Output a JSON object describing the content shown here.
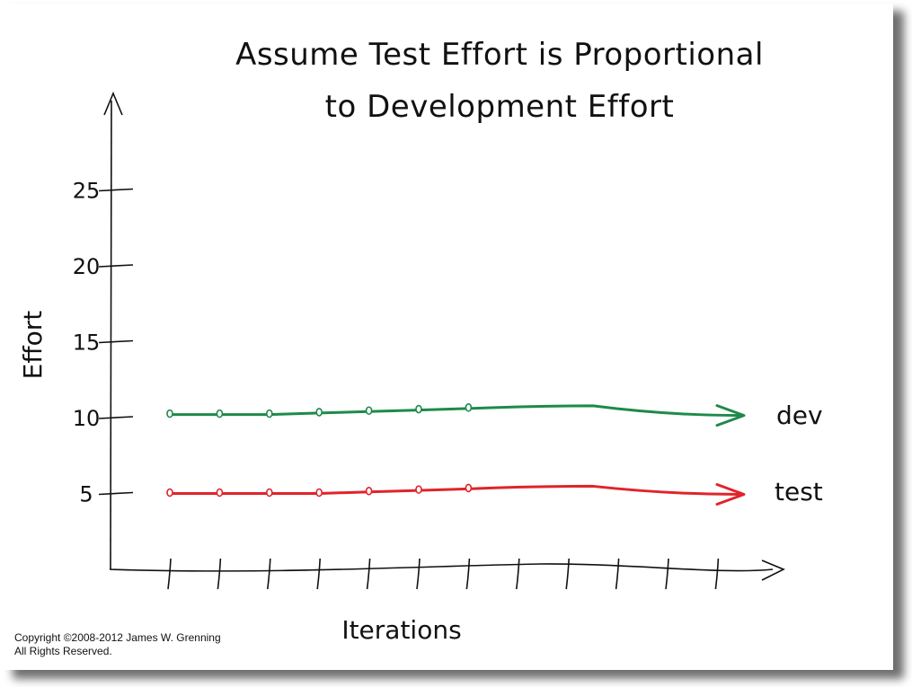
{
  "chart_data": {
    "type": "line",
    "title_lines": [
      "Assume Test Effort is Proportional",
      "to Development Effort"
    ],
    "xlabel": "Iterations",
    "ylabel": "Effort",
    "yticks": [
      "5",
      "10",
      "15",
      "20",
      "25"
    ],
    "ytick_values": [
      5,
      10,
      15,
      20,
      25
    ],
    "ylim": [
      0,
      30
    ],
    "x": [
      1,
      2,
      3,
      4,
      5,
      6,
      7
    ],
    "x_tick_count": 12,
    "grid": false,
    "series": [
      {
        "name": "dev",
        "values": [
          10.2,
          10.2,
          10.2,
          10.3,
          10.4,
          10.5,
          10.6
        ],
        "color": "#1e8a4a"
      },
      {
        "name": "test",
        "values": [
          5.0,
          5.0,
          5.0,
          5.0,
          5.1,
          5.2,
          5.3
        ],
        "color": "#e0242a"
      }
    ]
  },
  "footer": {
    "copyright_line1": "Copyright ©2008-2012 James W. Grenning",
    "copyright_line2": "All Rights Reserved."
  }
}
